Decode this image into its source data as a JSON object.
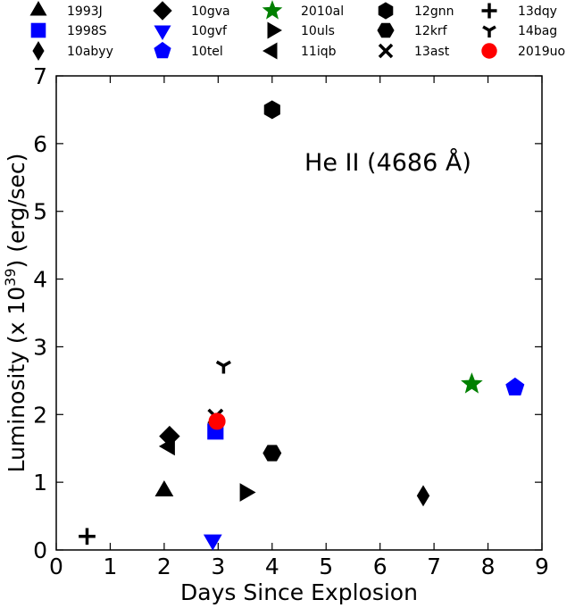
{
  "chart_data": {
    "type": "scatter",
    "xlabel": "Days Since Explosion",
    "ylabel_prefix": "Luminosity (x 10",
    "ylabel_exp": "39",
    "ylabel_suffix": ") (erg/sec)",
    "annotation": "He II (4686 Å)",
    "xlim": [
      0,
      9
    ],
    "ylim": [
      0,
      7
    ],
    "xticks": [
      0,
      1,
      2,
      3,
      4,
      5,
      6,
      7,
      8,
      9
    ],
    "yticks": [
      0,
      1,
      2,
      3,
      4,
      5,
      6,
      7
    ],
    "grid": false,
    "legend_placement": "top-outside",
    "series": [
      {
        "name": "1993J",
        "marker": "triangle-up",
        "color": "#000000",
        "points": [
          [
            2.0,
            0.87
          ]
        ]
      },
      {
        "name": "1998S",
        "marker": "square",
        "color": "#0000ff",
        "points": [
          [
            2.95,
            1.75
          ]
        ]
      },
      {
        "name": "10abyy",
        "marker": "thin-diamond",
        "color": "#000000",
        "points": [
          [
            6.8,
            0.8
          ]
        ]
      },
      {
        "name": "10gva",
        "marker": "diamond",
        "color": "#000000",
        "points": [
          [
            2.1,
            1.68
          ]
        ]
      },
      {
        "name": "10gvf",
        "marker": "triangle-down",
        "color": "#0000ff",
        "points": [
          [
            2.9,
            0.15
          ]
        ]
      },
      {
        "name": "10tel",
        "marker": "pentagon",
        "color": "#0000ff",
        "points": [
          [
            8.5,
            2.4
          ]
        ]
      },
      {
        "name": "2010al",
        "marker": "star",
        "color": "#008000",
        "points": [
          [
            7.7,
            2.45
          ]
        ]
      },
      {
        "name": "10uls",
        "marker": "triangle-right",
        "color": "#000000",
        "points": [
          [
            3.5,
            0.85
          ]
        ]
      },
      {
        "name": "11iqb",
        "marker": "triangle-left",
        "color": "#000000",
        "points": [
          [
            2.1,
            1.53
          ]
        ]
      },
      {
        "name": "12gnn",
        "marker": "hexagon",
        "color": "#000000",
        "points": [
          [
            4.0,
            6.5
          ]
        ]
      },
      {
        "name": "12krf",
        "marker": "hexagon2",
        "color": "#000000",
        "points": [
          [
            4.0,
            1.43
          ]
        ]
      },
      {
        "name": "13ast",
        "marker": "x",
        "color": "#000000",
        "points": [
          [
            2.95,
            1.97
          ]
        ]
      },
      {
        "name": "13dqy",
        "marker": "plus",
        "color": "#000000",
        "points": [
          [
            0.57,
            0.2
          ]
        ]
      },
      {
        "name": "14bag",
        "marker": "tri-down",
        "color": "#000000",
        "points": [
          [
            3.1,
            2.72
          ]
        ]
      },
      {
        "name": "2019uo",
        "marker": "circle",
        "color": "#ff0000",
        "points": [
          [
            2.98,
            1.9
          ]
        ]
      }
    ]
  }
}
